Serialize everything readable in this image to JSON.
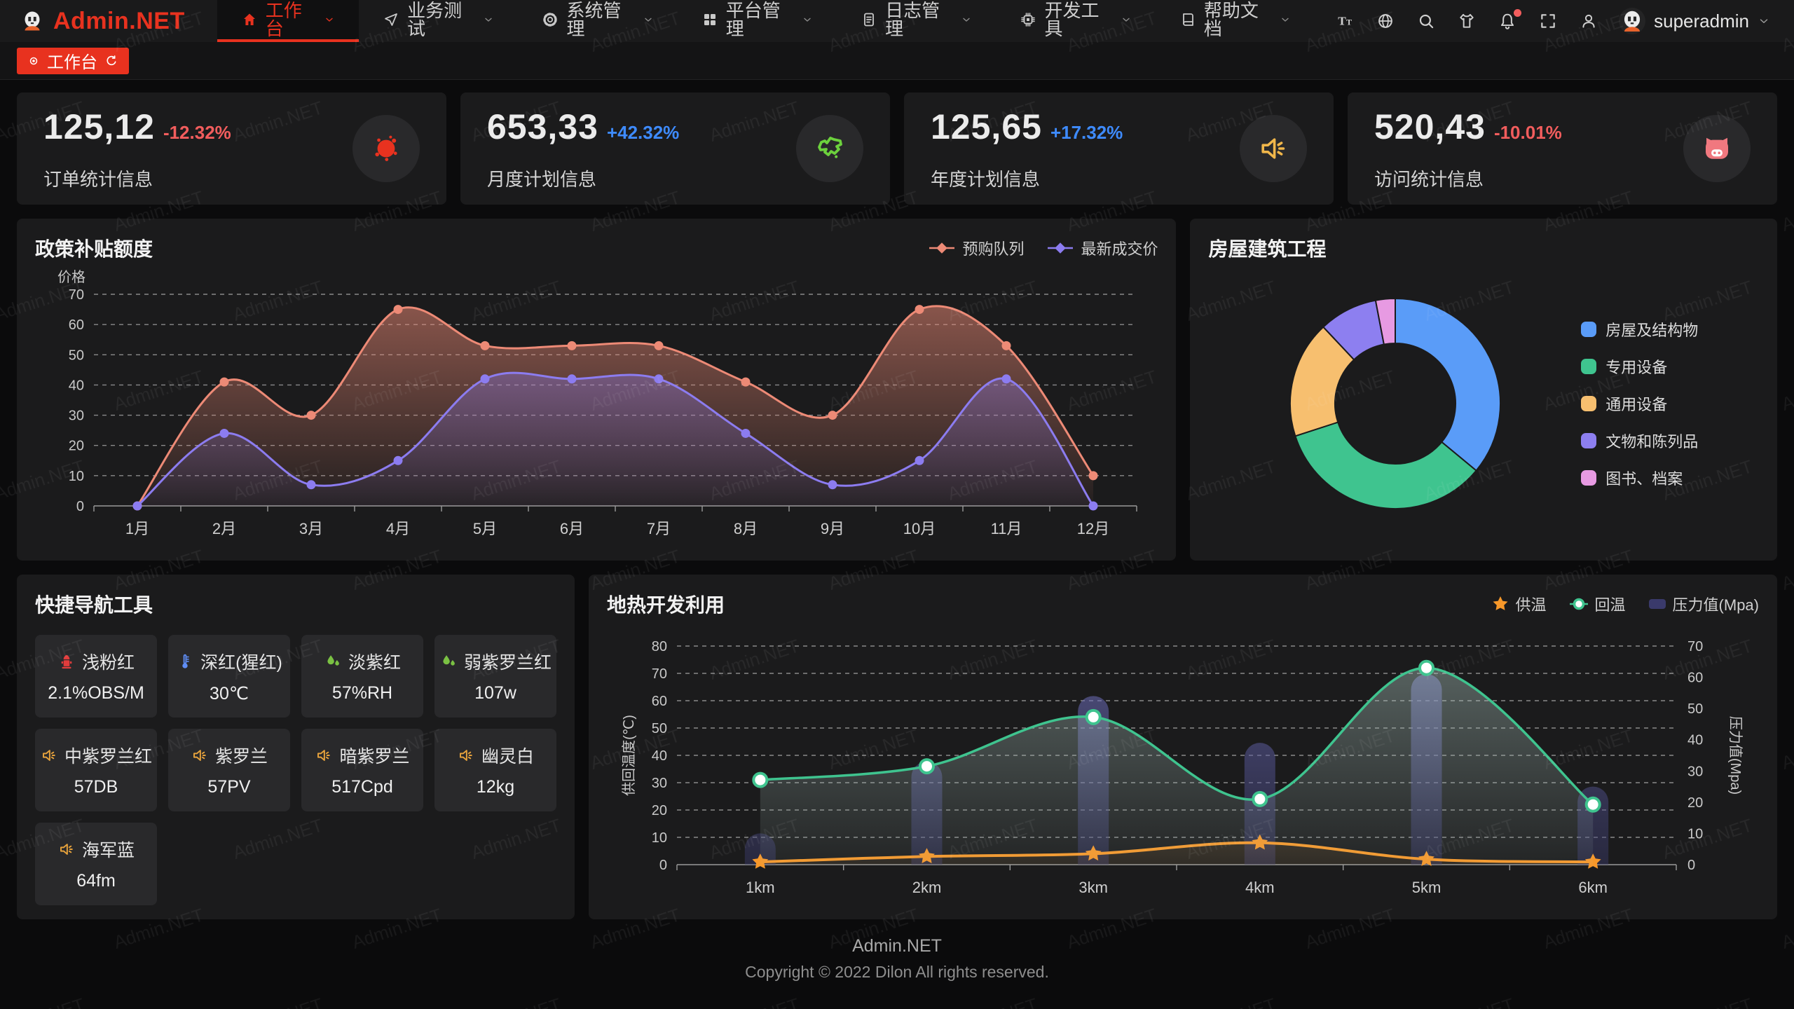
{
  "watermark": "Admin.NET",
  "brand_color": "#e8321f",
  "header": {
    "logo_text": "Admin.NET",
    "nav": [
      {
        "label": "工作台",
        "icon": "home-icon",
        "active": true,
        "has_chevron": true
      },
      {
        "label": "业务测试",
        "icon": "send-icon",
        "active": false,
        "has_chevron": true
      },
      {
        "label": "系统管理",
        "icon": "gear-icon",
        "active": false,
        "has_chevron": true
      },
      {
        "label": "平台管理",
        "icon": "grid-icon",
        "active": false,
        "has_chevron": true
      },
      {
        "label": "日志管理",
        "icon": "document-icon",
        "active": false,
        "has_chevron": true
      },
      {
        "label": "开发工具",
        "icon": "chip-icon",
        "active": false,
        "has_chevron": true
      },
      {
        "label": "帮助文档",
        "icon": "book-icon",
        "active": false,
        "has_chevron": true
      }
    ],
    "tools": [
      {
        "name": "font-size-icon"
      },
      {
        "name": "language-icon"
      },
      {
        "name": "search-icon"
      },
      {
        "name": "theme-icon"
      },
      {
        "name": "notification-icon",
        "badge": true
      },
      {
        "name": "fullscreen-icon"
      },
      {
        "name": "profile-icon"
      }
    ],
    "user": {
      "name": "superadmin"
    }
  },
  "tabbar": {
    "active_tab": "工作台"
  },
  "stats": [
    {
      "value": "125,12",
      "delta": "-12.32%",
      "delta_color": "#f25d5d",
      "label": "订单统计信息",
      "icon": "paint-splat-icon",
      "icon_color": "#e8321f"
    },
    {
      "value": "653,33",
      "delta": "+42.32%",
      "delta_color": "#3e8bff",
      "label": "月度计划信息",
      "icon": "china-map-icon",
      "icon_color": "#6cd13d"
    },
    {
      "value": "125,65",
      "delta": "+17.32%",
      "delta_color": "#3e8bff",
      "label": "年度计划信息",
      "icon": "speaker-icon",
      "icon_color": "#f0b64a"
    },
    {
      "value": "520,43",
      "delta": "-10.01%",
      "delta_color": "#f25d5d",
      "label": "访问统计信息",
      "icon": "pig-icon",
      "icon_color": "#f0787f"
    }
  ],
  "chart_data": [
    {
      "type": "line",
      "title": "政策补贴额度",
      "ylabel": "价格",
      "ylim": [
        0,
        70
      ],
      "y_ticks": [
        0,
        10,
        20,
        30,
        40,
        50,
        60,
        70
      ],
      "grid": "dashed",
      "legend_position": "top-right",
      "categories": [
        "1月",
        "2月",
        "3月",
        "4月",
        "5月",
        "6月",
        "7月",
        "8月",
        "9月",
        "10月",
        "11月",
        "12月"
      ],
      "series": [
        {
          "name": "预购队列",
          "color": "#ed8a76",
          "values": [
            0,
            41,
            30,
            65,
            53,
            53,
            53,
            41,
            30,
            65,
            53,
            10
          ]
        },
        {
          "name": "最新成交价",
          "color": "#8c7cf0",
          "values": [
            0,
            24,
            7,
            15,
            42,
            42,
            42,
            24,
            7,
            15,
            42,
            0
          ]
        }
      ]
    },
    {
      "type": "pie",
      "title": "房屋建筑工程",
      "donut": true,
      "legend_position": "right",
      "slices": [
        {
          "name": "房屋及结构物",
          "value": 36,
          "color": "#5a9cf8"
        },
        {
          "name": "专用设备",
          "value": 34,
          "color": "#3fc48f"
        },
        {
          "name": "通用设备",
          "value": 18,
          "color": "#f7bf6f"
        },
        {
          "name": "文物和陈列品",
          "value": 9,
          "color": "#8d7ff0"
        },
        {
          "name": "图书、档案",
          "value": 3,
          "color": "#e79ae2"
        }
      ]
    },
    {
      "type": "mixed-line-bar",
      "title": "地热开发利用",
      "categories": [
        "1km",
        "2km",
        "3km",
        "4km",
        "5km",
        "6km"
      ],
      "ylabel_left": "供回温度(℃)",
      "ylim_left": [
        0,
        80
      ],
      "ylabel_right": "压力值(Mpa)",
      "ylim_right": [
        0,
        70
      ],
      "grid": "dashed",
      "legend_position": "top-right",
      "series": [
        {
          "name": "供温",
          "chart": "line",
          "marker": "star",
          "axis": "left",
          "color": "#f7982a",
          "values": [
            1,
            3,
            4,
            8,
            2,
            1
          ]
        },
        {
          "name": "回温",
          "chart": "line",
          "marker": "circle",
          "axis": "left",
          "color": "#3fc48f",
          "values": [
            31,
            36,
            54,
            24,
            72,
            22
          ]
        },
        {
          "name": "压力值(Mpa)",
          "chart": "bar",
          "axis": "right",
          "color": "#4a4a85",
          "values": [
            10,
            33,
            54,
            39,
            61,
            25
          ]
        }
      ]
    }
  ],
  "quick_nav": {
    "title": "快捷导航工具",
    "items": [
      {
        "name": "浅粉红",
        "value": "2.1%OBS/M",
        "icon": "hydrant-icon",
        "icon_color": "#e23c3c"
      },
      {
        "name": "深红(猩红)",
        "value": "30℃",
        "icon": "thermometer-icon",
        "icon_color": "#5f8df5"
      },
      {
        "name": "淡紫红",
        "value": "57%RH",
        "icon": "humidity-icon",
        "icon_color": "#7ac143"
      },
      {
        "name": "弱紫罗兰红",
        "value": "107w",
        "icon": "humidity-icon",
        "icon_color": "#7ac143"
      },
      {
        "name": "中紫罗兰红",
        "value": "57DB",
        "icon": "speaker-icon",
        "icon_color": "#e6a23c"
      },
      {
        "name": "紫罗兰",
        "value": "57PV",
        "icon": "speaker-icon",
        "icon_color": "#e6a23c"
      },
      {
        "name": "暗紫罗兰",
        "value": "517Cpd",
        "icon": "speaker-icon",
        "icon_color": "#e6a23c"
      },
      {
        "name": "幽灵白",
        "value": "12kg",
        "icon": "speaker-icon",
        "icon_color": "#e6a23c"
      },
      {
        "name": "海军蓝",
        "value": "64fm",
        "icon": "speaker-icon",
        "icon_color": "#e6a23c"
      }
    ]
  },
  "footer": {
    "line1": "Admin.NET",
    "line2": "Copyright © 2022 Dilon All rights reserved."
  }
}
